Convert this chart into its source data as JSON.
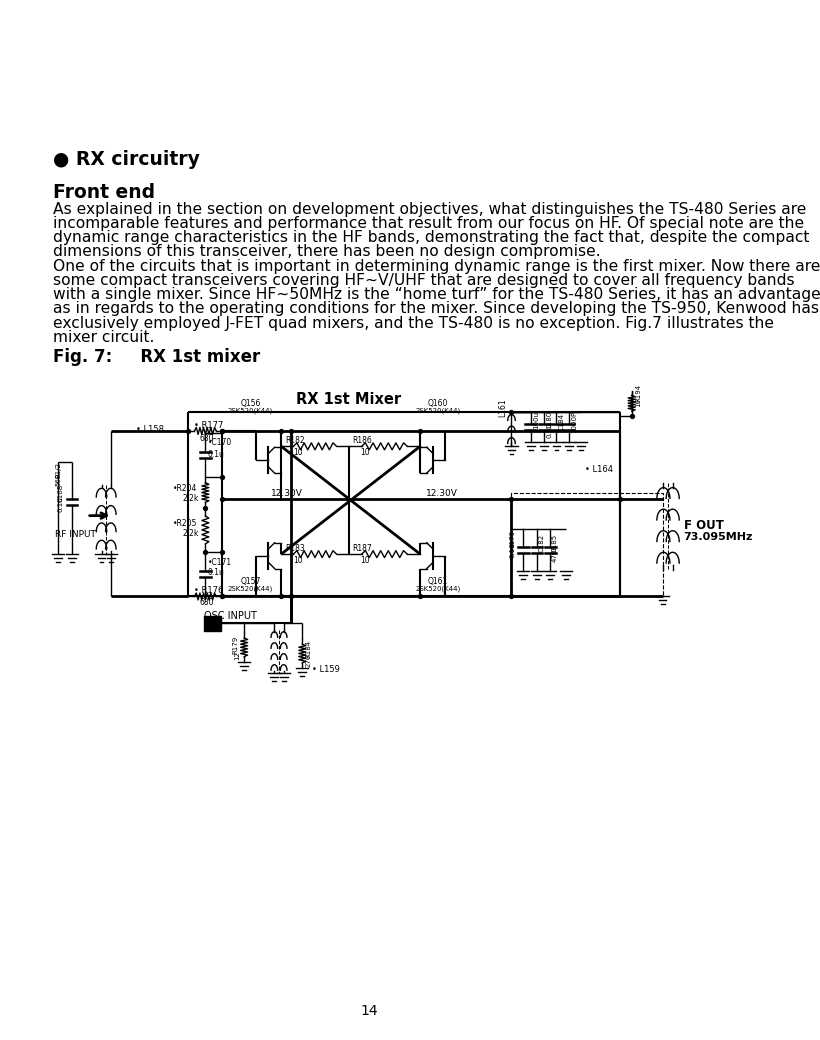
{
  "bg_color": "#ffffff",
  "page_number": "14",
  "section_title": "● RX circuitry",
  "subsection_title": "Front end",
  "para1_line1": "As explained in the section on development objectives, what distinguishes the TS-480 Series are",
  "para1_line2": "incomparable features and performance that result from our focus on HF. Of special note are the",
  "para1_line3": "dynamic range characteristics in the HF bands, demonstrating the fact that, despite the compact",
  "para1_line4": "dimensions of this transceiver, there has been no design compromise.",
  "para2_line1": "One of the circuits that is important in determining dynamic range is the first mixer. Now there are",
  "para2_line2": "some compact transceivers covering HF~V/UHF that are designed to cover all frequency bands",
  "para2_line3": "with a single mixer. Since HF~50MHz is the “home turf” for the TS-480 Series, it has an advantage",
  "para2_line4": "as in regards to the operating conditions for the mixer. Since developing the TS-950, Kenwood has",
  "para2_line5": "exclusively employed J-FET quad mixers, and the TS-480 is no exception. Fig.7 illustrates the",
  "para2_line6": "mixer circuit.",
  "fig_caption": "Fig. 7:   RX 1st mixer",
  "diag_title": "RX 1st Mixer"
}
